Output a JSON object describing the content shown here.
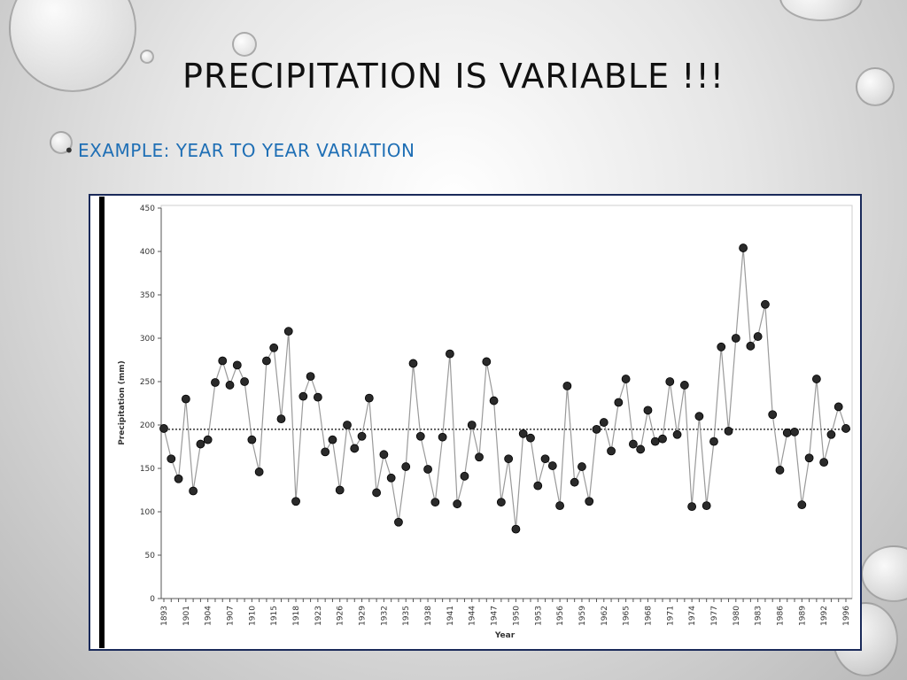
{
  "slide": {
    "title": "PRECIPITATION IS VARIABLE !!!",
    "bullet": "EXAMPLE: YEAR TO YEAR VARIATION"
  },
  "chart_data": {
    "type": "line",
    "ylabel": "Precipitation (mm)",
    "xlabel": "Year",
    "categories": [
      "1893",
      null,
      null,
      "1901",
      null,
      null,
      "1904",
      null,
      null,
      "1907",
      null,
      null,
      "1910",
      null,
      null,
      "1915",
      null,
      null,
      "1918",
      null,
      null,
      "1923",
      null,
      null,
      "1926",
      null,
      null,
      "1929",
      null,
      null,
      "1932",
      null,
      null,
      "1935",
      null,
      null,
      "1938",
      null,
      null,
      "1941",
      null,
      null,
      "1944",
      null,
      null,
      "1947",
      null,
      null,
      "1950",
      null,
      null,
      "1953",
      null,
      null,
      "1956",
      null,
      null,
      "1959",
      null,
      null,
      "1962",
      null,
      null,
      "1965",
      null,
      null,
      "1968",
      null,
      null,
      "1971",
      null,
      null,
      "1974",
      null,
      null,
      "1977",
      null,
      null,
      "1980",
      null,
      null,
      "1983",
      null,
      null,
      "1986",
      null,
      null,
      "1989",
      null,
      null,
      "1992",
      null,
      null,
      "1996"
    ],
    "values": [
      196,
      161,
      138,
      230,
      124,
      178,
      183,
      249,
      274,
      246,
      269,
      250,
      183,
      146,
      274,
      289,
      207,
      308,
      112,
      233,
      256,
      232,
      169,
      183,
      125,
      200,
      173,
      187,
      231,
      122,
      166,
      139,
      88,
      152,
      271,
      187,
      149,
      111,
      186,
      282,
      109,
      141,
      200,
      163,
      273,
      228,
      111,
      161,
      80,
      190,
      185,
      130,
      161,
      153,
      107,
      245,
      134,
      152,
      112,
      195,
      203,
      170,
      226,
      253,
      178,
      172,
      217,
      181,
      184,
      250,
      189,
      246,
      106,
      210,
      107,
      181,
      290,
      193,
      300,
      404,
      291,
      302,
      339,
      212,
      148,
      191,
      192,
      108,
      162,
      253,
      157,
      189,
      221,
      196
    ],
    "color": "#2a2a2a",
    "line_color": "#9a9a9a",
    "mean_line": 195,
    "ylim": [
      0,
      450
    ],
    "yticks": [
      0,
      50,
      100,
      150,
      200,
      250,
      300,
      350,
      400,
      450
    ]
  }
}
